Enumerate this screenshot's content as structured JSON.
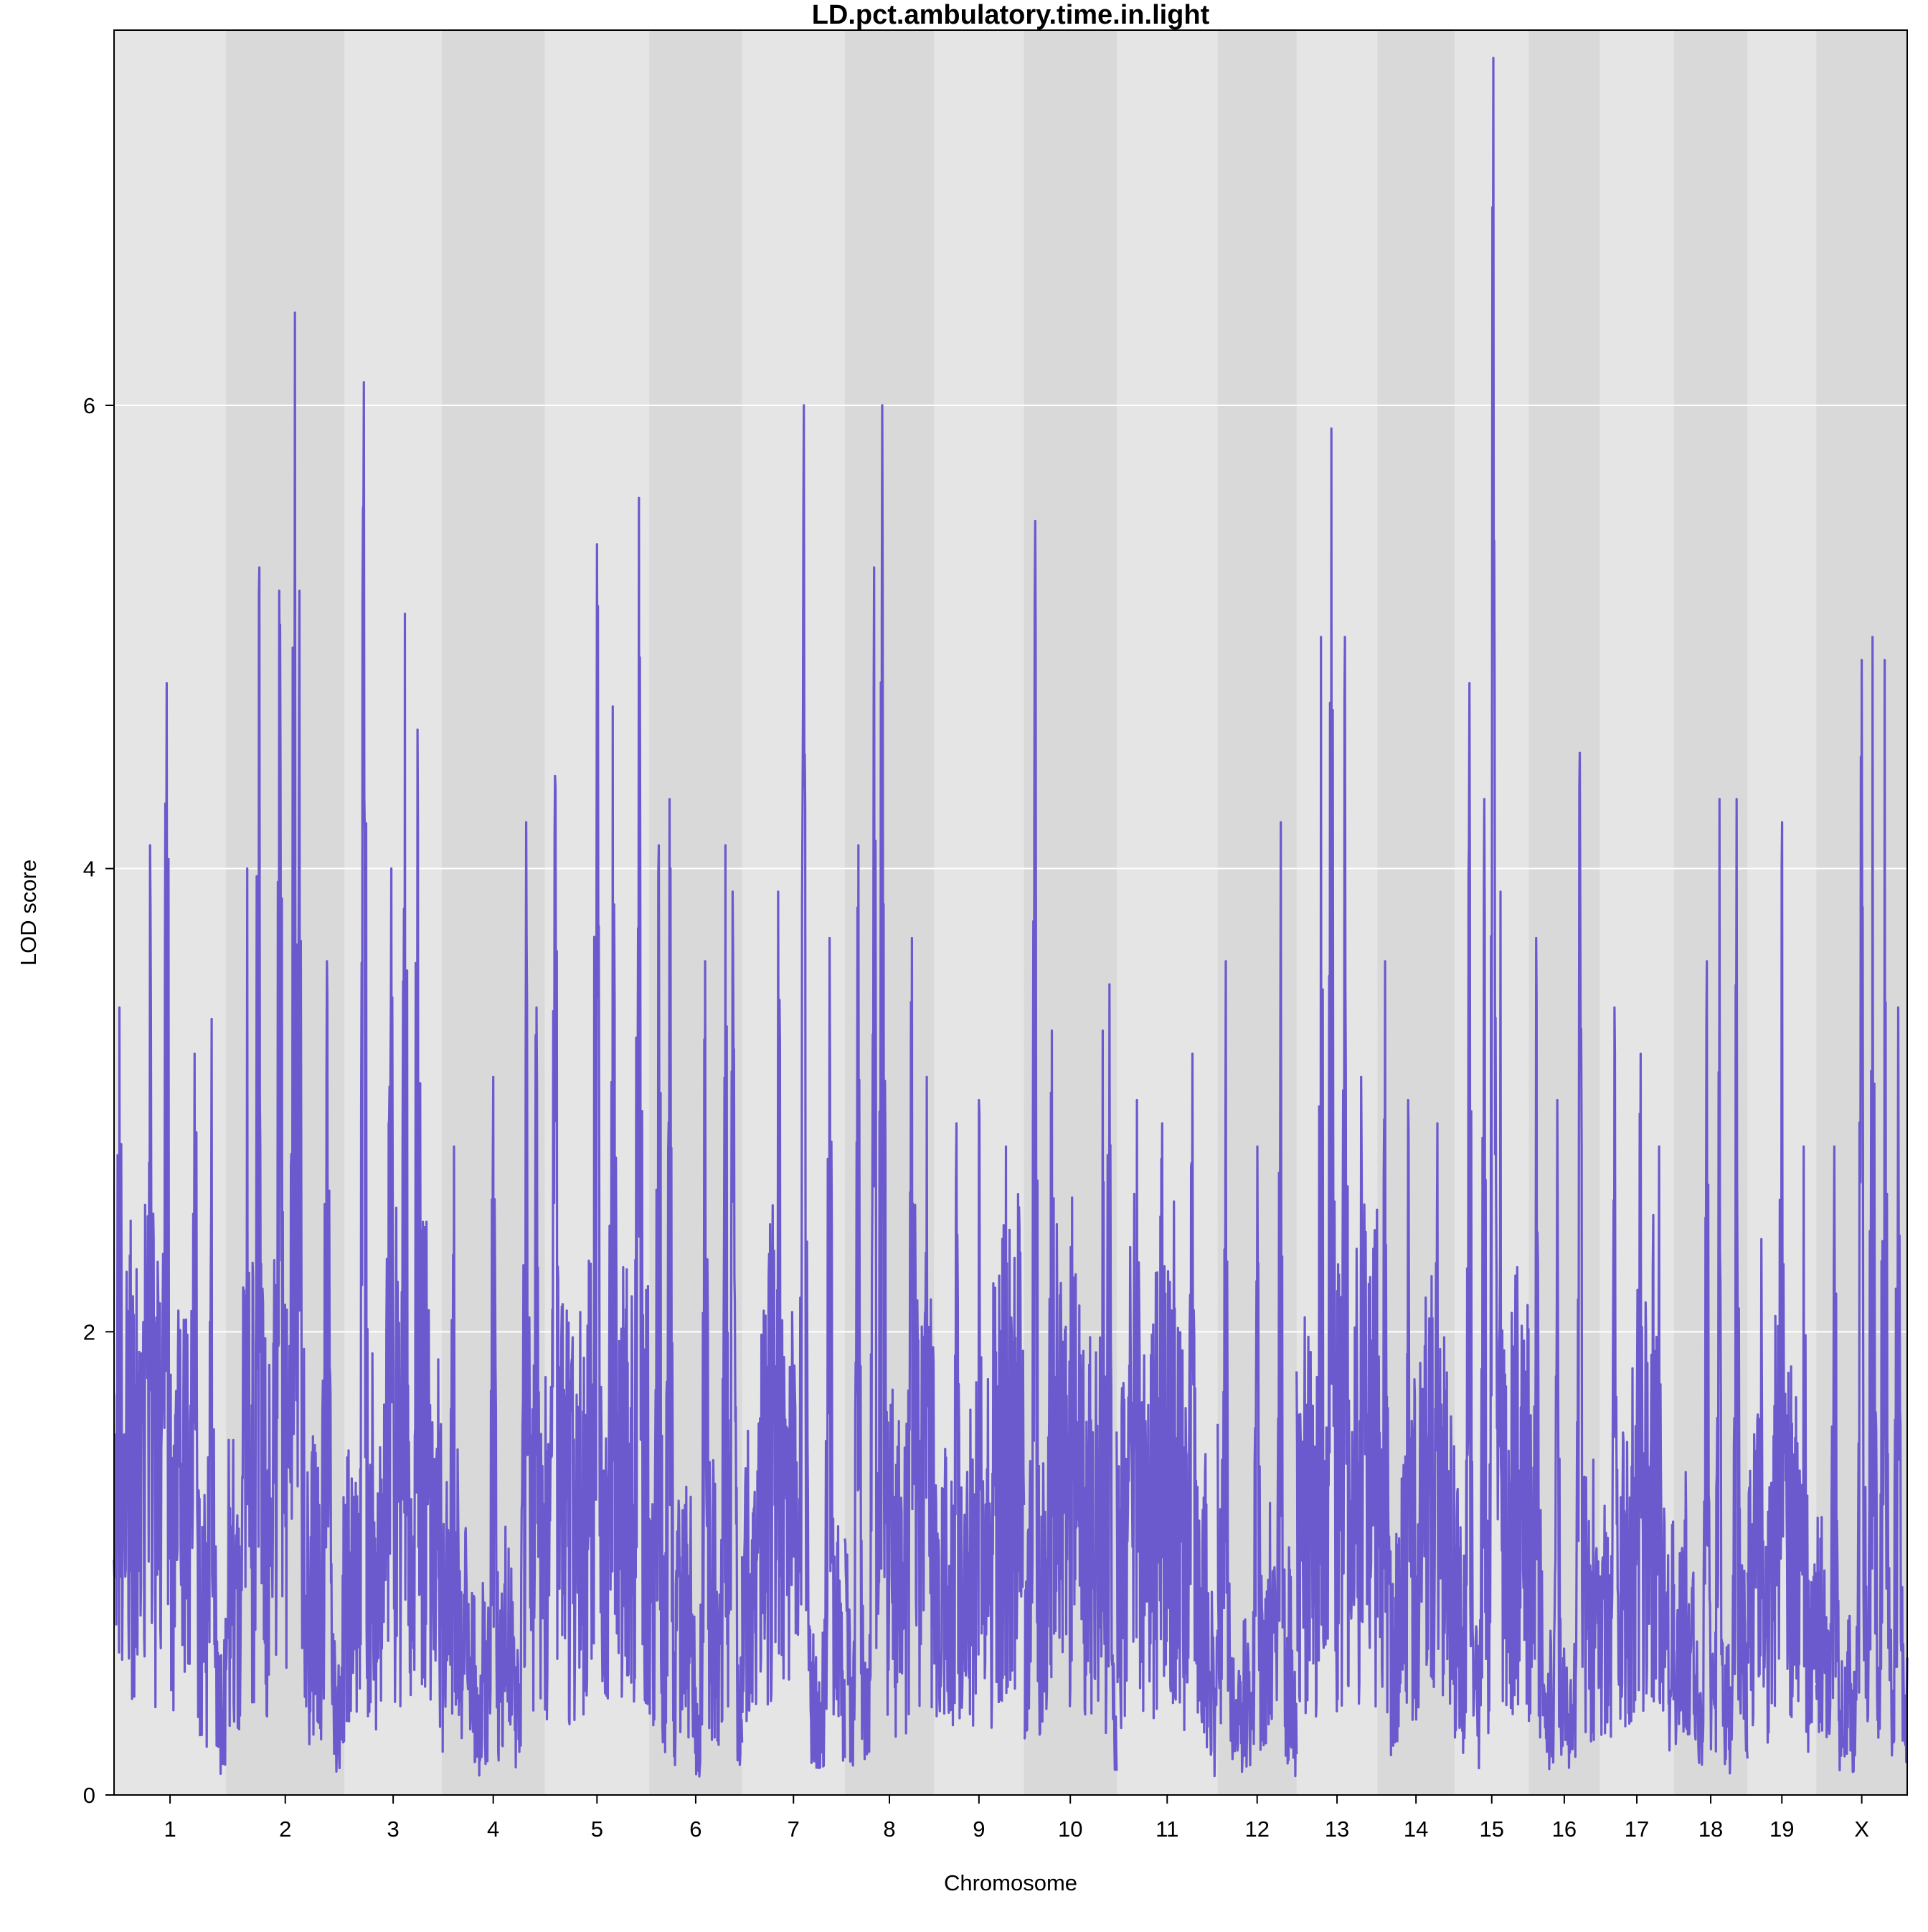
{
  "chart_data": {
    "type": "line",
    "title": "LD.pct.ambulatory.time.in.light",
    "xlabel": "Chromosome",
    "ylabel": "LOD score",
    "ylim": [
      0,
      7.62
    ],
    "yticks": [
      0,
      2,
      4,
      6
    ],
    "grid": "horizontal",
    "legend": "none",
    "colors": {
      "line": "#6a5acd",
      "band_light": "#e5e5e5",
      "band_dark": "#d9d9d9",
      "grid": "#ffffff"
    },
    "chromosomes": [
      {
        "name": "1",
        "peaks": [
          [
            0.05,
            3.4
          ],
          [
            0.32,
            4.1
          ],
          [
            0.47,
            4.8
          ],
          [
            0.72,
            3.2
          ],
          [
            0.87,
            3.35
          ]
        ]
      },
      {
        "name": "2",
        "peaks": [
          [
            0.18,
            4.0
          ],
          [
            0.28,
            5.3
          ],
          [
            0.45,
            5.2
          ],
          [
            0.58,
            6.4
          ],
          [
            0.62,
            5.2
          ],
          [
            0.85,
            3.6
          ]
        ]
      },
      {
        "name": "3",
        "peaks": [
          [
            0.2,
            6.1
          ],
          [
            0.48,
            4.0
          ],
          [
            0.62,
            5.1
          ],
          [
            0.75,
            4.6
          ]
        ]
      },
      {
        "name": "4",
        "peaks": [
          [
            0.12,
            2.8
          ],
          [
            0.5,
            3.1
          ],
          [
            0.82,
            4.2
          ],
          [
            0.92,
            3.4
          ]
        ]
      },
      {
        "name": "5",
        "peaks": [
          [
            0.1,
            4.4
          ],
          [
            0.5,
            5.4
          ],
          [
            0.65,
            4.7
          ],
          [
            0.9,
            5.6
          ]
        ]
      },
      {
        "name": "6",
        "peaks": [
          [
            0.1,
            4.1
          ],
          [
            0.22,
            4.3
          ],
          [
            0.6,
            3.6
          ],
          [
            0.82,
            4.1
          ],
          [
            0.9,
            3.9
          ]
        ]
      },
      {
        "name": "7",
        "peaks": [
          [
            0.35,
            3.9
          ],
          [
            0.6,
            6.0
          ],
          [
            0.85,
            3.7
          ]
        ]
      },
      {
        "name": "8",
        "peaks": [
          [
            0.15,
            4.1
          ],
          [
            0.33,
            5.3
          ],
          [
            0.42,
            6.0
          ],
          [
            0.75,
            3.7
          ],
          [
            0.92,
            3.1
          ]
        ]
      },
      {
        "name": "9",
        "peaks": [
          [
            0.25,
            2.9
          ],
          [
            0.5,
            3.0
          ],
          [
            0.8,
            2.8
          ]
        ]
      },
      {
        "name": "10",
        "peaks": [
          [
            0.12,
            5.5
          ],
          [
            0.3,
            3.3
          ],
          [
            0.85,
            3.3
          ],
          [
            0.92,
            3.5
          ]
        ]
      },
      {
        "name": "11",
        "peaks": [
          [
            0.2,
            3.0
          ],
          [
            0.45,
            2.9
          ],
          [
            0.75,
            3.2
          ]
        ]
      },
      {
        "name": "12",
        "peaks": [
          [
            0.1,
            3.6
          ],
          [
            0.5,
            2.8
          ],
          [
            0.8,
            4.2
          ]
        ]
      },
      {
        "name": "13",
        "peaks": [
          [
            0.3,
            5.0
          ],
          [
            0.43,
            5.9
          ],
          [
            0.6,
            5.0
          ],
          [
            0.8,
            3.1
          ]
        ]
      },
      {
        "name": "14",
        "peaks": [
          [
            0.1,
            3.6
          ],
          [
            0.4,
            3.0
          ],
          [
            0.78,
            2.9
          ]
        ]
      },
      {
        "name": "15",
        "peaks": [
          [
            0.2,
            4.8
          ],
          [
            0.4,
            4.3
          ],
          [
            0.52,
            7.5
          ],
          [
            0.62,
            3.9
          ]
        ]
      },
      {
        "name": "16",
        "peaks": [
          [
            0.1,
            3.7
          ],
          [
            0.4,
            3.0
          ],
          [
            0.72,
            4.5
          ]
        ]
      },
      {
        "name": "17",
        "peaks": [
          [
            0.2,
            3.4
          ],
          [
            0.55,
            3.2
          ],
          [
            0.8,
            2.8
          ]
        ]
      },
      {
        "name": "18",
        "peaks": [
          [
            0.45,
            3.6
          ],
          [
            0.62,
            4.3
          ],
          [
            0.85,
            4.3
          ]
        ]
      },
      {
        "name": "19",
        "peaks": [
          [
            0.2,
            2.4
          ],
          [
            0.5,
            4.2
          ],
          [
            0.82,
            2.8
          ]
        ]
      },
      {
        "name": "X",
        "peaks": [
          [
            0.2,
            2.8
          ],
          [
            0.5,
            4.9
          ],
          [
            0.62,
            5.0
          ],
          [
            0.75,
            4.9
          ],
          [
            0.9,
            3.4
          ]
        ]
      }
    ]
  }
}
